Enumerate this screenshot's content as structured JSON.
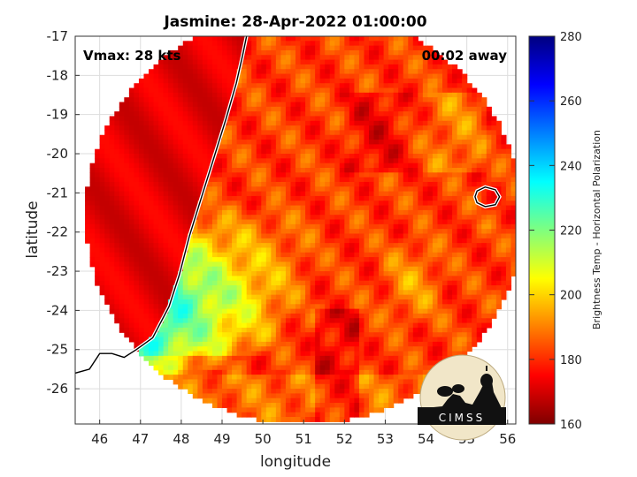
{
  "chart_data": {
    "type": "heatmap",
    "title": "Jasmine: 28-Apr-2022 01:00:00",
    "xlabel": "longitude",
    "ylabel": "latitude",
    "xlim": [
      45.4,
      56.2
    ],
    "ylim": [
      -26.9,
      -17
    ],
    "xticks": [
      46,
      47,
      48,
      49,
      50,
      51,
      52,
      53,
      54,
      55,
      56
    ],
    "yticks": [
      -17,
      -18,
      -19,
      -20,
      -21,
      -22,
      -23,
      -24,
      -25,
      -26
    ],
    "grid": true,
    "annotations": {
      "vmax": "Vmax: 28 kts",
      "time_offset": "00:02 away"
    },
    "swath_center": [
      51.0,
      -21.6
    ],
    "colorbar": {
      "label": "Brightness Temp - Horizontal Polarization",
      "min": 160,
      "max": 280,
      "ticks": [
        280,
        260,
        240,
        220,
        200,
        180,
        160
      ],
      "colormap": "jet"
    },
    "coastline": [
      [
        49.6,
        -17.0
      ],
      [
        49.5,
        -17.5
      ],
      [
        49.35,
        -18.2
      ],
      [
        49.1,
        -19.1
      ],
      [
        48.8,
        -20.1
      ],
      [
        48.5,
        -21.1
      ],
      [
        48.2,
        -22.1
      ],
      [
        47.95,
        -23.1
      ],
      [
        47.7,
        -23.9
      ],
      [
        47.3,
        -24.7
      ],
      [
        46.9,
        -25.0
      ],
      [
        46.6,
        -25.2
      ],
      [
        46.3,
        -25.1
      ],
      [
        46.0,
        -25.1
      ],
      [
        45.75,
        -25.5
      ],
      [
        45.4,
        -25.6
      ]
    ],
    "island_contour": [
      [
        55.25,
        -20.95
      ],
      [
        55.45,
        -20.85
      ],
      [
        55.7,
        -20.92
      ],
      [
        55.8,
        -21.1
      ],
      [
        55.7,
        -21.3
      ],
      [
        55.45,
        -21.35
      ],
      [
        55.25,
        -21.25
      ],
      [
        55.2,
        -21.1
      ]
    ]
  },
  "logo": {
    "text": "CIMSS"
  }
}
